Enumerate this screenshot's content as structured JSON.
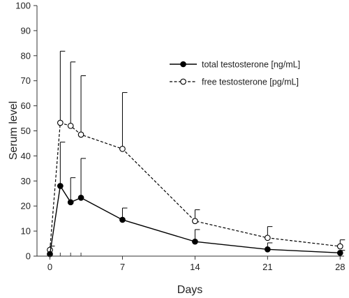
{
  "chart_data": {
    "type": "line",
    "xlabel": "Days",
    "ylabel": "Serum level",
    "xlim": [
      -1,
      28.5
    ],
    "ylim": [
      0,
      100
    ],
    "x_ticks": [
      0,
      7,
      14,
      21,
      28
    ],
    "x_minor_ticks": [
      1,
      2,
      3
    ],
    "y_ticks": [
      0,
      10,
      20,
      30,
      40,
      50,
      60,
      70,
      80,
      90,
      100
    ],
    "grid": false,
    "legend_position": "top-right",
    "series": [
      {
        "name": "total testosterone [ng/mL]",
        "style": "solid",
        "marker": "filled-circle",
        "x": [
          0,
          1,
          2,
          3,
          7,
          14,
          21,
          28
        ],
        "y": [
          0.8,
          28,
          21.5,
          23.3,
          14.5,
          5.8,
          2.7,
          1.3
        ],
        "error_upper": [
          null,
          45.5,
          31.3,
          39,
          19.2,
          10.6,
          5.3,
          2.3
        ]
      },
      {
        "name": "free testosterone [pg/mL]",
        "style": "dashed",
        "marker": "open-circle",
        "x": [
          0,
          1,
          2,
          3,
          7,
          14,
          21,
          28
        ],
        "y": [
          2.5,
          53.2,
          52,
          48.5,
          42.8,
          14,
          7.3,
          3.9
        ],
        "error_upper": [
          4,
          81.8,
          77.5,
          72,
          65.3,
          18.5,
          11.8,
          6.5
        ]
      }
    ]
  }
}
